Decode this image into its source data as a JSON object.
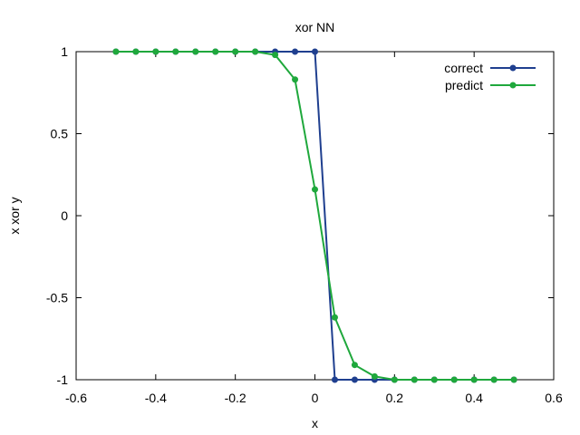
{
  "chart_data": {
    "type": "line",
    "title": "xor NN",
    "xlabel": "x",
    "ylabel": "x xor y",
    "xlim": [
      -0.6,
      0.6
    ],
    "ylim": [
      -1,
      1
    ],
    "xticks": [
      -0.6,
      -0.4,
      -0.2,
      0,
      0.2,
      0.4,
      0.6
    ],
    "yticks": [
      -1,
      -0.5,
      0,
      0.5,
      1
    ],
    "xtick_labels": [
      "-0.6",
      "-0.4",
      "-0.2",
      "0",
      "0.2",
      "0.4",
      "0.6"
    ],
    "ytick_labels": [
      "-1",
      "-0.5",
      "0",
      "0.5",
      "1"
    ],
    "grid": false,
    "legend_position": "top-right",
    "series": [
      {
        "name": "correct",
        "color": "#1f3f8f",
        "x": [
          -0.5,
          -0.45,
          -0.4,
          -0.35,
          -0.3,
          -0.25,
          -0.2,
          -0.15,
          -0.1,
          -0.05,
          0,
          0.05,
          0.1,
          0.15,
          0.2,
          0.25,
          0.3,
          0.35,
          0.4,
          0.45,
          0.5
        ],
        "y": [
          1,
          1,
          1,
          1,
          1,
          1,
          1,
          1,
          1,
          1,
          1,
          -1,
          -1,
          -1,
          -1,
          -1,
          -1,
          -1,
          -1,
          -1,
          -1
        ]
      },
      {
        "name": "predict",
        "color": "#1fa83c",
        "x": [
          -0.5,
          -0.45,
          -0.4,
          -0.35,
          -0.3,
          -0.25,
          -0.2,
          -0.15,
          -0.1,
          -0.05,
          0,
          0.05,
          0.1,
          0.15,
          0.2,
          0.25,
          0.3,
          0.35,
          0.4,
          0.45,
          0.5
        ],
        "y": [
          1,
          1,
          1,
          1,
          1,
          1,
          1,
          1,
          0.98,
          0.83,
          0.16,
          -0.62,
          -0.91,
          -0.98,
          -1,
          -1,
          -1,
          -1,
          -1,
          -1,
          -1
        ]
      }
    ]
  }
}
